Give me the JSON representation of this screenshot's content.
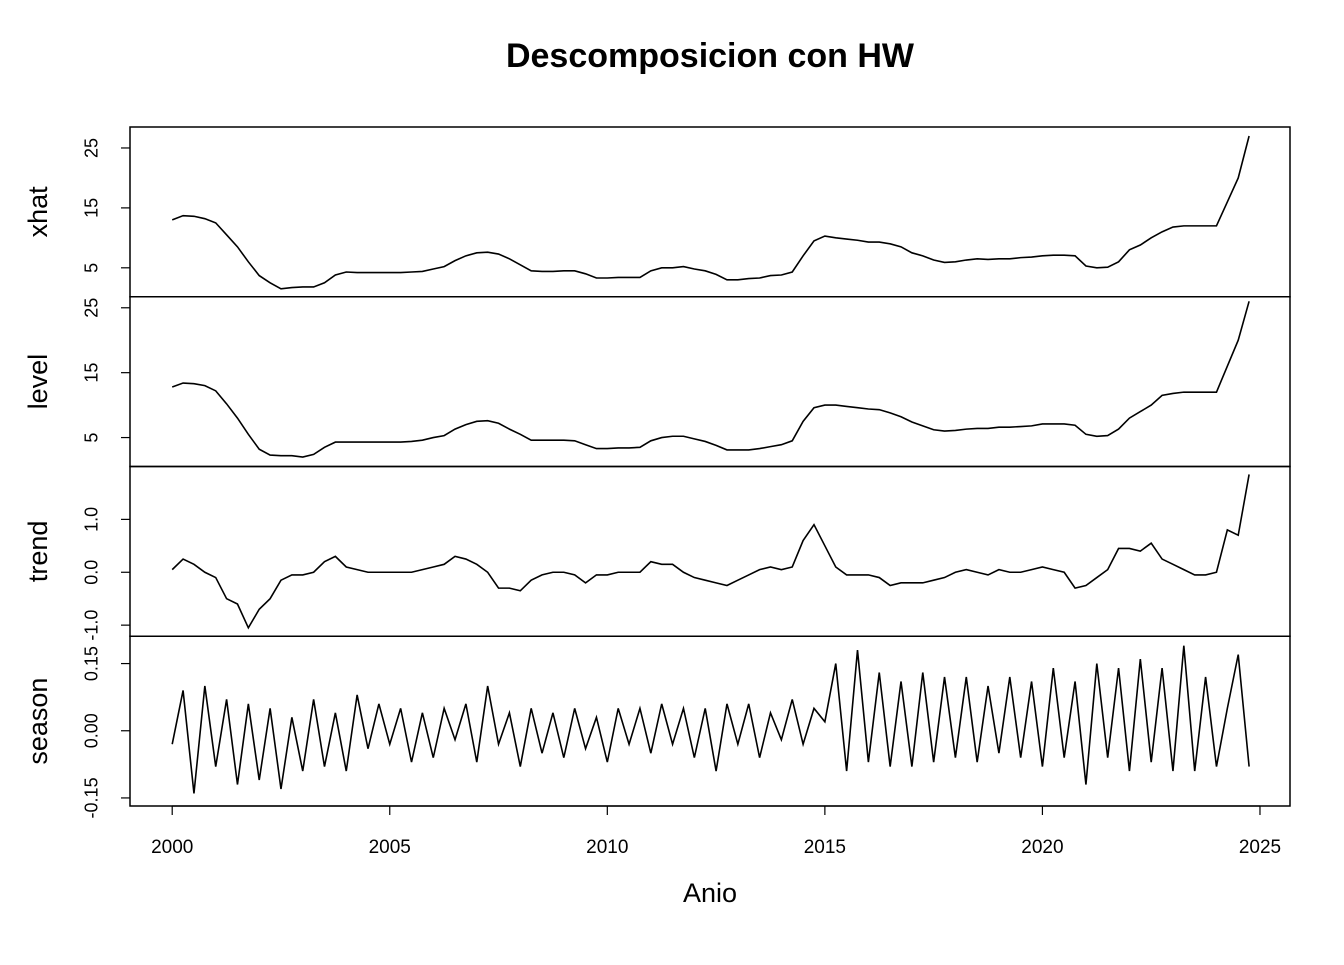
{
  "chart_data": {
    "type": "line",
    "title": "Descomposicion con HW",
    "xlabel": "Anio",
    "xlim": [
      1999.03,
      2025.69
    ],
    "xticks": [
      2000,
      2005,
      2010,
      2015,
      2020,
      2025
    ],
    "color": "#000000",
    "x": [
      2000,
      2000.25,
      2000.5,
      2000.75,
      2001,
      2001.25,
      2001.5,
      2001.75,
      2002,
      2002.25,
      2002.5,
      2002.75,
      2003,
      2003.25,
      2003.5,
      2003.75,
      2004,
      2004.25,
      2004.5,
      2004.75,
      2005,
      2005.25,
      2005.5,
      2005.75,
      2006,
      2006.25,
      2006.5,
      2006.75,
      2007,
      2007.25,
      2007.5,
      2007.75,
      2008,
      2008.25,
      2008.5,
      2008.75,
      2009,
      2009.25,
      2009.5,
      2009.75,
      2010,
      2010.25,
      2010.5,
      2010.75,
      2011,
      2011.25,
      2011.5,
      2011.75,
      2012,
      2012.25,
      2012.5,
      2012.75,
      2013,
      2013.25,
      2013.5,
      2013.75,
      2014,
      2014.25,
      2014.5,
      2014.75,
      2015,
      2015.25,
      2015.5,
      2015.75,
      2016,
      2016.25,
      2016.5,
      2016.75,
      2017,
      2017.25,
      2017.5,
      2017.75,
      2018,
      2018.25,
      2018.5,
      2018.75,
      2019,
      2019.25,
      2019.5,
      2019.75,
      2020,
      2020.25,
      2020.5,
      2020.75,
      2021,
      2021.25,
      2021.5,
      2021.75,
      2022,
      2022.25,
      2022.5,
      2022.75,
      2023,
      2023.25,
      2023.5,
      2023.75,
      2024,
      2024.25,
      2024.5,
      2024.75
    ],
    "panels": [
      {
        "ylabel": "xhat",
        "ylim": [
          0.17,
          28.5
        ],
        "yticks": [
          5,
          15,
          25
        ],
        "values": [
          13,
          13.7,
          13.6,
          13.2,
          12.5,
          10.5,
          8.5,
          6,
          3.7,
          2.5,
          1.5,
          1.7,
          1.8,
          1.8,
          2.5,
          3.8,
          4.3,
          4.2,
          4.2,
          4.2,
          4.2,
          4.2,
          4.3,
          4.4,
          4.8,
          5.2,
          6.2,
          7,
          7.5,
          7.6,
          7.3,
          6.5,
          5.5,
          4.5,
          4.4,
          4.4,
          4.5,
          4.5,
          4,
          3.3,
          3.3,
          3.4,
          3.4,
          3.4,
          4.5,
          5,
          5,
          5.2,
          4.8,
          4.5,
          3.9,
          3,
          3,
          3.2,
          3.3,
          3.7,
          3.8,
          4.3,
          7,
          9.5,
          10.3,
          10,
          9.8,
          9.6,
          9.3,
          9.3,
          9,
          8.5,
          7.5,
          7,
          6.3,
          5.9,
          6,
          6.3,
          6.5,
          6.4,
          6.5,
          6.5,
          6.7,
          6.8,
          7,
          7.1,
          7.1,
          7,
          5.3,
          5,
          5.1,
          6,
          8,
          8.8,
          10,
          11,
          11.8,
          12,
          12,
          12,
          12,
          16,
          20,
          27
        ]
      },
      {
        "ylabel": "level",
        "ylim": [
          0.54,
          26.7
        ],
        "yticks": [
          5,
          15,
          25
        ],
        "values": [
          12.8,
          13.4,
          13.3,
          13,
          12.2,
          10.2,
          8,
          5.5,
          3.2,
          2.3,
          2.2,
          2.2,
          2,
          2.4,
          3.5,
          4.3,
          4.3,
          4.3,
          4.3,
          4.3,
          4.3,
          4.3,
          4.4,
          4.6,
          5,
          5.3,
          6.3,
          7,
          7.5,
          7.6,
          7.2,
          6.3,
          5.5,
          4.6,
          4.6,
          4.6,
          4.6,
          4.5,
          3.9,
          3.3,
          3.3,
          3.4,
          3.4,
          3.5,
          4.5,
          5,
          5.2,
          5.2,
          4.8,
          4.4,
          3.8,
          3.1,
          3.1,
          3.1,
          3.3,
          3.6,
          3.9,
          4.5,
          7.5,
          9.6,
          10,
          10,
          9.8,
          9.6,
          9.4,
          9.3,
          8.8,
          8.2,
          7.4,
          6.8,
          6.2,
          6,
          6.1,
          6.3,
          6.4,
          6.4,
          6.6,
          6.6,
          6.7,
          6.8,
          7.1,
          7.1,
          7.1,
          6.9,
          5.5,
          5.2,
          5.3,
          6.3,
          8,
          9,
          10,
          11.5,
          11.8,
          12,
          12,
          12,
          12,
          16,
          20,
          26
        ]
      },
      {
        "ylabel": "trend",
        "ylim": [
          -1.21,
          2.0
        ],
        "yticks": [
          {
            "value": -1,
            "label": "-1.0"
          },
          {
            "value": 0,
            "label": "0.0"
          },
          {
            "value": 1,
            "label": "1.0"
          }
        ],
        "values": [
          0.05,
          0.25,
          0.15,
          0,
          -0.1,
          -0.5,
          -0.6,
          -1.05,
          -0.7,
          -0.5,
          -0.15,
          -0.05,
          -0.05,
          0,
          0.2,
          0.3,
          0.1,
          0.05,
          0,
          0,
          0,
          0,
          0,
          0.05,
          0.1,
          0.15,
          0.3,
          0.25,
          0.15,
          0,
          -0.3,
          -0.3,
          -0.35,
          -0.15,
          -0.05,
          0,
          0,
          -0.05,
          -0.2,
          -0.05,
          -0.05,
          0,
          0,
          0,
          0.2,
          0.15,
          0.15,
          0,
          -0.1,
          -0.15,
          -0.2,
          -0.25,
          -0.15,
          -0.05,
          0.05,
          0.1,
          0.05,
          0.1,
          0.6,
          0.9,
          0.5,
          0.1,
          -0.05,
          -0.05,
          -0.05,
          -0.1,
          -0.25,
          -0.2,
          -0.2,
          -0.2,
          -0.15,
          -0.1,
          0,
          0.05,
          0,
          -0.05,
          0.05,
          0,
          0,
          0.05,
          0.1,
          0.05,
          0,
          -0.3,
          -0.25,
          -0.1,
          0.05,
          0.45,
          0.45,
          0.4,
          0.55,
          0.25,
          0.15,
          0.05,
          -0.05,
          -0.05,
          0,
          0.8,
          0.7,
          1.85
        ]
      },
      {
        "ylabel": "season",
        "ylim": [
          -0.168,
          0.211
        ],
        "yticks": [
          {
            "value": -0.15,
            "label": "-0.15"
          },
          {
            "value": 0,
            "label": "0.00"
          },
          {
            "value": 0.15,
            "label": "0.15"
          }
        ],
        "values": [
          -0.03,
          0.09,
          -0.14,
          0.1,
          -0.08,
          0.07,
          -0.12,
          0.06,
          -0.11,
          0.05,
          -0.13,
          0.03,
          -0.09,
          0.07,
          -0.08,
          0.04,
          -0.09,
          0.08,
          -0.04,
          0.06,
          -0.03,
          0.05,
          -0.07,
          0.04,
          -0.06,
          0.05,
          -0.02,
          0.06,
          -0.07,
          0.1,
          -0.03,
          0.04,
          -0.08,
          0.05,
          -0.05,
          0.04,
          -0.06,
          0.05,
          -0.04,
          0.03,
          -0.07,
          0.05,
          -0.03,
          0.05,
          -0.05,
          0.06,
          -0.03,
          0.05,
          -0.06,
          0.05,
          -0.09,
          0.06,
          -0.03,
          0.06,
          -0.06,
          0.04,
          -0.02,
          0.07,
          -0.03,
          0.05,
          0.02,
          0.15,
          -0.09,
          0.18,
          -0.07,
          0.13,
          -0.08,
          0.11,
          -0.08,
          0.13,
          -0.07,
          0.12,
          -0.06,
          0.12,
          -0.07,
          0.1,
          -0.05,
          0.12,
          -0.06,
          0.11,
          -0.08,
          0.14,
          -0.06,
          0.11,
          -0.12,
          0.15,
          -0.06,
          0.14,
          -0.09,
          0.16,
          -0.07,
          0.14,
          -0.09,
          0.19,
          -0.09,
          0.12,
          -0.08,
          0.05,
          0.17,
          -0.08
        ]
      }
    ]
  }
}
